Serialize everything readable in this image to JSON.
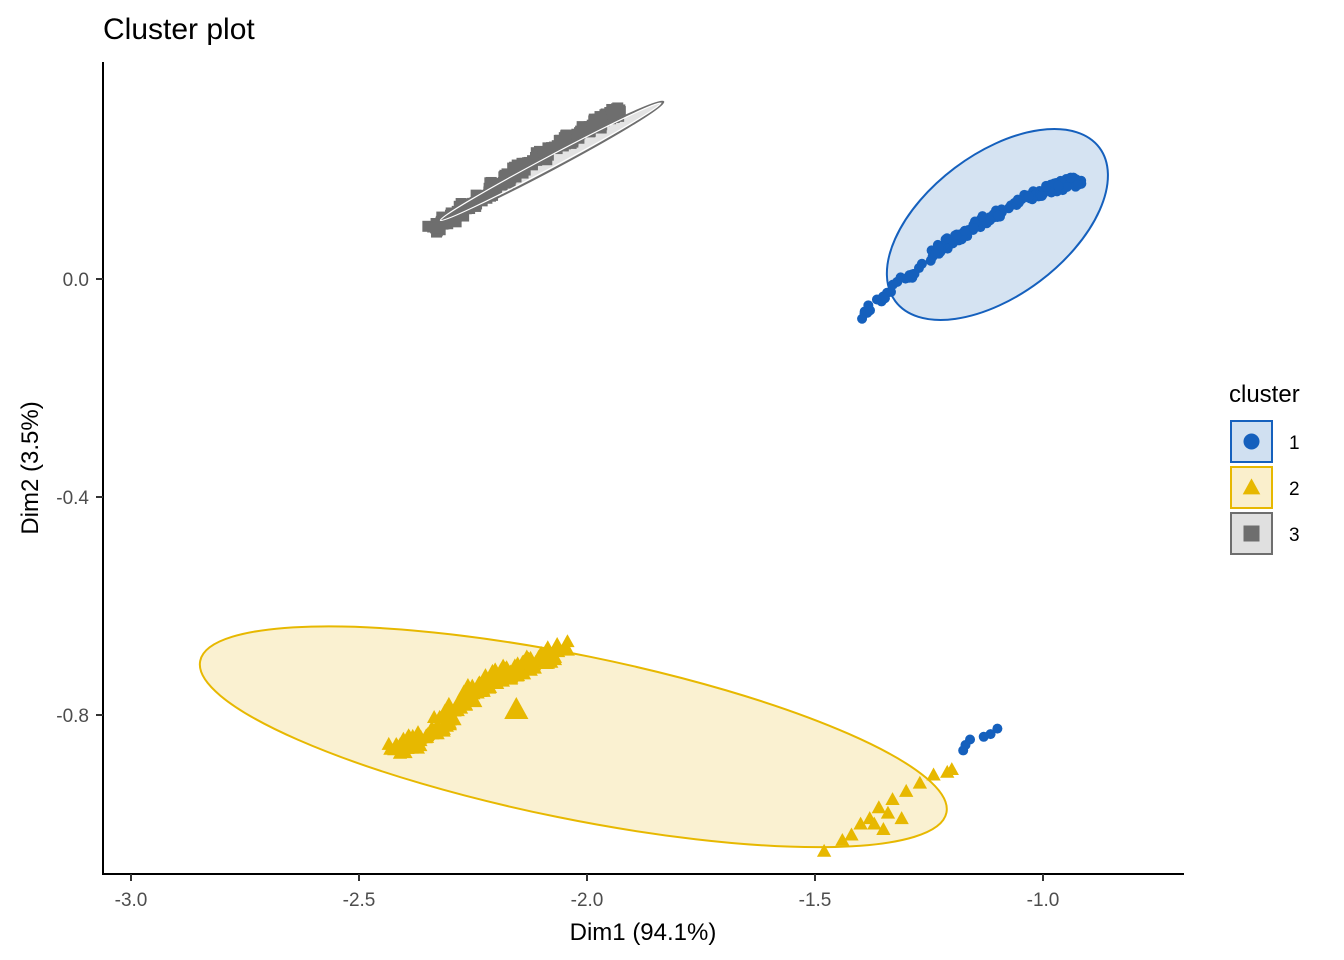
{
  "chart_data": {
    "type": "scatter",
    "title": "Cluster plot",
    "xlabel": "Dim1 (94.1%)",
    "ylabel": "Dim2 (3.5%)",
    "xlim": [
      -3.04,
      -0.69
    ],
    "ylim": [
      -1.09,
      0.39
    ],
    "xticks": [
      -3.0,
      -2.5,
      -2.0,
      -1.5,
      -1.0
    ],
    "xtick_labels": [
      "-3.0",
      "-2.5",
      "-2.0",
      "-1.5",
      "-1.0"
    ],
    "yticks": [
      0.0,
      -0.4,
      -0.8
    ],
    "ytick_labels": [
      "0.0",
      "-0.4",
      "-0.8"
    ],
    "grid": false,
    "legend": {
      "title": "cluster",
      "placement": "right",
      "entries": [
        {
          "label": "1",
          "shape": "circle",
          "color": "#1560BD"
        },
        {
          "label": "2",
          "shape": "triangle",
          "color": "#E7B800"
        },
        {
          "label": "3",
          "shape": "square",
          "color": "#6E6E6E"
        }
      ]
    },
    "series": [
      {
        "name": "1",
        "shape": "circle",
        "color": "#1560BD",
        "fill": "#D0E0F1",
        "ellipse": {
          "center": [
            -1.1,
            0.1
          ],
          "semi_axes": [
            0.28,
            0.13
          ],
          "angle_deg": 37
        },
        "band": [
          [
            -1.4,
            -0.075
          ],
          [
            -1.35,
            -0.03
          ],
          [
            -1.3,
            0.0
          ],
          [
            -1.25,
            0.04
          ],
          [
            -1.2,
            0.07
          ],
          [
            -1.15,
            0.095
          ],
          [
            -1.1,
            0.12
          ],
          [
            -1.05,
            0.145
          ],
          [
            -1.0,
            0.16
          ],
          [
            -0.95,
            0.175
          ],
          [
            -0.92,
            0.18
          ]
        ],
        "extra_points": [
          [
            -1.1,
            -0.825
          ],
          [
            -1.115,
            -0.835
          ],
          [
            -1.13,
            -0.84
          ],
          [
            -1.16,
            -0.845
          ],
          [
            -1.17,
            -0.855
          ],
          [
            -1.175,
            -0.865
          ]
        ]
      },
      {
        "name": "2",
        "shape": "triangle",
        "color": "#E7B800",
        "fill": "#FAEFCC",
        "ellipse": {
          "center": [
            -2.03,
            -0.84
          ],
          "semi_axes": [
            0.835,
            0.15
          ],
          "angle_deg": -11.5
        },
        "band": [
          [
            -2.42,
            -0.865
          ],
          [
            -2.38,
            -0.85
          ],
          [
            -2.34,
            -0.83
          ],
          [
            -2.3,
            -0.8
          ],
          [
            -2.27,
            -0.77
          ],
          [
            -2.24,
            -0.75
          ],
          [
            -2.2,
            -0.73
          ],
          [
            -2.15,
            -0.715
          ],
          [
            -2.1,
            -0.7
          ],
          [
            -2.05,
            -0.67
          ]
        ],
        "extra_points": [
          [
            -2.155,
            -0.79
          ],
          [
            -1.48,
            -1.05
          ],
          [
            -1.44,
            -1.03
          ],
          [
            -1.42,
            -1.02
          ],
          [
            -1.4,
            -1.0
          ],
          [
            -1.38,
            -0.99
          ],
          [
            -1.36,
            -0.97
          ],
          [
            -1.33,
            -0.955
          ],
          [
            -1.3,
            -0.94
          ],
          [
            -1.27,
            -0.925
          ],
          [
            -1.24,
            -0.91
          ],
          [
            -1.21,
            -0.905
          ],
          [
            -1.2,
            -0.9
          ],
          [
            -1.34,
            -0.98
          ],
          [
            -1.37,
            -1.0
          ],
          [
            -1.31,
            -0.99
          ],
          [
            -1.35,
            -1.01
          ]
        ]
      },
      {
        "name": "3",
        "shape": "square",
        "color": "#6E6E6E",
        "fill": "#E0E0E0",
        "ellipse": {
          "center": [
            -2.08,
            0.215
          ],
          "semi_axes": [
            0.28,
            0.014
          ],
          "angle_deg": 28
        },
        "band": [
          [
            -2.34,
            0.09
          ],
          [
            -2.3,
            0.11
          ],
          [
            -2.25,
            0.14
          ],
          [
            -2.2,
            0.17
          ],
          [
            -2.15,
            0.2
          ],
          [
            -2.1,
            0.225
          ],
          [
            -2.05,
            0.25
          ],
          [
            -2.0,
            0.275
          ],
          [
            -1.95,
            0.3
          ],
          [
            -1.93,
            0.31
          ]
        ],
        "extra_points": []
      }
    ]
  }
}
